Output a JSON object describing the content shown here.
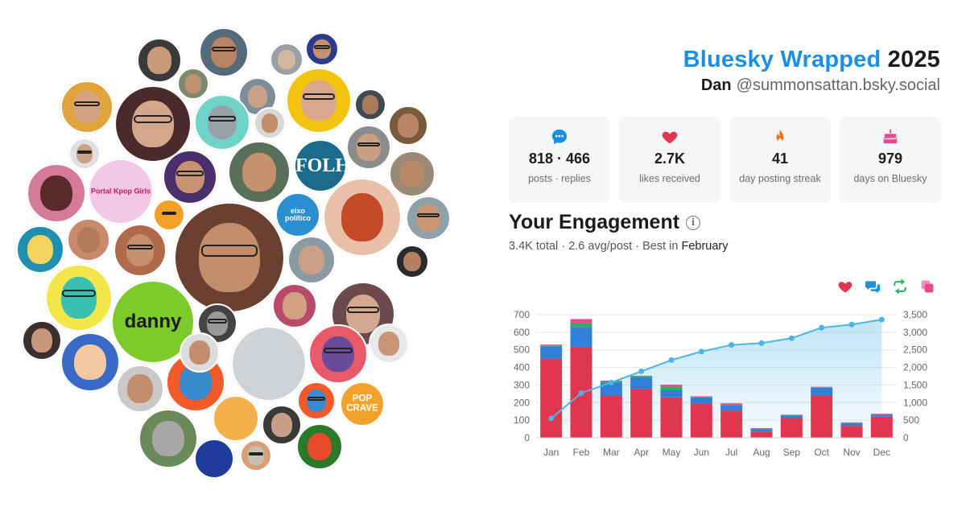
{
  "header": {
    "brand": "Bluesky Wrapped",
    "year": "2025",
    "name": "Dan",
    "handle": "@summonsattan.bsky.social"
  },
  "stats": [
    {
      "icon": "chat-bubble-icon",
      "value": "818 · 466",
      "label": "posts · replies",
      "color": "#1a8fe3"
    },
    {
      "icon": "heart-icon",
      "value": "2.7K",
      "label": "likes received",
      "color": "#e0364f"
    },
    {
      "icon": "flame-icon",
      "value": "41",
      "label": "day posting streak",
      "color": "#f0701d"
    },
    {
      "icon": "cake-icon",
      "value": "979",
      "label": "days on Bluesky",
      "color": "#e64b8c"
    }
  ],
  "engagement": {
    "title": "Your Engagement",
    "total": "3.4K",
    "total_word": "total",
    "avg": "2.6",
    "avg_word": "avg/post",
    "best_prefix": "Best in",
    "best_month": "February"
  },
  "legend": [
    {
      "icon": "heart-icon",
      "color": "#e0364f"
    },
    {
      "icon": "reply-bubbles-icon",
      "color": "#1a8fe3"
    },
    {
      "icon": "repost-icon",
      "color": "#22b35c"
    },
    {
      "icon": "quote-icon",
      "color": "#e64b8c"
    }
  ],
  "avatars": [
    {
      "name": "avatar-bearded-man-1",
      "bg": "#3a3a3a",
      "face": "#c99a7a"
    },
    {
      "name": "avatar-man-glasses-1",
      "bg": "#556b7a",
      "face": "#b98466"
    },
    {
      "name": "avatar-man-mask",
      "bg": "#9aa0a6",
      "face": "#d4b7a0"
    },
    {
      "name": "avatar-man-glasses-blue",
      "bg": "#2b3a8c",
      "face": "#c4906e"
    },
    {
      "name": "avatar-man-mustache",
      "bg": "#e0a43a",
      "face": "#d3a383"
    },
    {
      "name": "avatar-group-photo",
      "bg": "#7a8a6a",
      "face": "#bf9272"
    },
    {
      "name": "avatar-man-selfie",
      "bg": "#7d8d99",
      "face": "#c9a088"
    },
    {
      "name": "avatar-santa-hat",
      "bg": "#f2c40f",
      "face": "#d9a88a"
    },
    {
      "name": "avatar-man-dark",
      "bg": "#3f4a52",
      "face": "#a87a5e"
    },
    {
      "name": "avatar-man-curly",
      "bg": "#7a5a3a",
      "face": "#b98566"
    },
    {
      "name": "avatar-large-man",
      "bg": "#4a2a2a",
      "face": "#d4a68a"
    },
    {
      "name": "avatar-cat-sunglasses",
      "bg": "#6fd3c7",
      "face": "#9aa0a8"
    },
    {
      "name": "avatar-man-beard-2",
      "bg": "#d8d8d8",
      "face": "#c38d6a"
    },
    {
      "name": "avatar-man-beard-3",
      "bg": "#e0e0e0",
      "face": "#caa086"
    },
    {
      "name": "avatar-red-character",
      "bg": "#d67a9a",
      "face": "#5a2a2a"
    },
    {
      "name": "avatar-portal-kpop",
      "bg": "#f3c7e6",
      "face": "#f3c7e6",
      "text": "Portal Kpop Girls"
    },
    {
      "name": "avatar-pikachu",
      "bg": "#f4a12a",
      "face": "#f4a12a"
    },
    {
      "name": "avatar-man-green",
      "bg": "#58705a",
      "face": "#c5916f"
    },
    {
      "name": "avatar-folha",
      "bg": "#1b6c8c",
      "face": "#1b6c8c",
      "text": "FOLHA"
    },
    {
      "name": "avatar-man-purple",
      "bg": "#4b2f6a",
      "face": "#c99272"
    },
    {
      "name": "avatar-man-glasses-3",
      "bg": "#8c8c8c",
      "face": "#caa084"
    },
    {
      "name": "avatar-man-beard-4",
      "bg": "#9a8a78",
      "face": "#b98868"
    },
    {
      "name": "avatar-eixo-politico",
      "bg": "#2a8fd0",
      "face": "#2a8fd0",
      "text": "eixo político"
    },
    {
      "name": "avatar-anime-redhead",
      "bg": "#e8c0a8",
      "face": "#c44a2a"
    },
    {
      "name": "avatar-main-man",
      "bg": "#8fa1a9",
      "face": "#c99774"
    },
    {
      "name": "avatar-man-glasses-4",
      "bg": "#6a4030",
      "face": "#c38c6a"
    },
    {
      "name": "avatar-lightbulb",
      "bg": "#1f8fb0",
      "face": "#f4d35e"
    },
    {
      "name": "avatar-man-beard-5",
      "bg": "#c88a6a",
      "face": "#b27b5c"
    },
    {
      "name": "avatar-man-smile",
      "bg": "#b06a4a",
      "face": "#c69070"
    },
    {
      "name": "avatar-man-child",
      "bg": "#8a9aa2",
      "face": "#caa088"
    },
    {
      "name": "avatar-man-dark-2",
      "bg": "#2a2a2a",
      "face": "#b47f62"
    },
    {
      "name": "avatar-colorful-art",
      "bg": "#f2e64a",
      "face": "#3ac0b0"
    },
    {
      "name": "avatar-danny",
      "bg": "#7ccb2a",
      "face": "#7ccb2a",
      "text": "danny"
    },
    {
      "name": "avatar-man-pride",
      "bg": "#b84a6a",
      "face": "#d3a182"
    },
    {
      "name": "avatar-woman-1",
      "bg": "#6a4a4a",
      "face": "#d4a890"
    },
    {
      "name": "avatar-woman-curly",
      "bg": "#3a2e2e",
      "face": "#c89678"
    },
    {
      "name": "avatar-cartoon-girl",
      "bg": "#3a6ac8",
      "face": "#f2c9a0"
    },
    {
      "name": "avatar-man-bw",
      "bg": "#444444",
      "face": "#9a9a9a"
    },
    {
      "name": "avatar-blue-cartoon",
      "bg": "#f25a2a",
      "face": "#3a8ad0"
    },
    {
      "name": "avatar-watch",
      "bg": "#cfd3d6",
      "face": "#cfd3d6"
    },
    {
      "name": "avatar-gengar",
      "bg": "#e85a6a",
      "face": "#6a4a9a"
    },
    {
      "name": "avatar-man-beard-6",
      "bg": "#e8e8e8",
      "face": "#c79474"
    },
    {
      "name": "avatar-man-beard-7",
      "bg": "#c9c9c9",
      "face": "#c38e70"
    },
    {
      "name": "avatar-pop-crave",
      "bg": "#f2a22a",
      "face": "#f2a22a",
      "text": "POP CRAVE"
    },
    {
      "name": "avatar-gumball",
      "bg": "#f4b04a",
      "face": "#f4b04a"
    },
    {
      "name": "avatar-man-tv",
      "bg": "#3a3a3a",
      "face": "#c8a088"
    },
    {
      "name": "avatar-blue-cartoon-2",
      "bg": "#f25a2a",
      "face": "#3a8ad0"
    },
    {
      "name": "avatar-man-walking",
      "bg": "#6a8a5a",
      "face": "#a8a8a8"
    },
    {
      "name": "avatar-camarote",
      "bg": "#1e3c9a",
      "face": "#1e3c9a"
    },
    {
      "name": "avatar-rock",
      "bg": "#d8a07a",
      "face": "#c8c0b0"
    },
    {
      "name": "avatar-colorful-mask",
      "bg": "#2a7a2a",
      "face": "#e84a2a"
    },
    {
      "name": "avatar-man-beard-8",
      "bg": "#dcdcdc",
      "face": "#c38e70"
    }
  ],
  "chart_data": {
    "type": "bar",
    "categories": [
      "Jan",
      "Feb",
      "Mar",
      "Apr",
      "May",
      "Jun",
      "Jul",
      "Aug",
      "Sep",
      "Oct",
      "Nov",
      "Dec"
    ],
    "series": [
      {
        "name": "likes",
        "color": "#e0364f",
        "values": [
          450,
          515,
          240,
          278,
          230,
          195,
          155,
          35,
          112,
          240,
          68,
          120
        ]
      },
      {
        "name": "replies",
        "color": "#2f80d8",
        "values": [
          70,
          115,
          75,
          65,
          40,
          35,
          30,
          15,
          15,
          45,
          15,
          12
        ]
      },
      {
        "name": "reposts",
        "color": "#22b35c",
        "values": [
          5,
          20,
          5,
          5,
          20,
          3,
          3,
          2,
          2,
          2,
          2,
          2
        ]
      },
      {
        "name": "quotes",
        "color": "#e64b8c",
        "values": [
          5,
          25,
          5,
          5,
          12,
          3,
          8,
          3,
          3,
          3,
          3,
          3
        ]
      }
    ],
    "cumulative": [
      {
        "name": "cumulative",
        "color": "#4db4e8",
        "values": [
          550,
          1270,
          1570,
          1890,
          2210,
          2450,
          2640,
          2690,
          2830,
          3130,
          3220,
          3360
        ]
      }
    ],
    "ylim": [
      0,
      700
    ],
    "yticks": [
      "0",
      "100",
      "200",
      "300",
      "400",
      "500",
      "600",
      "700"
    ],
    "y2lim": [
      0,
      3500
    ],
    "y2ticks": [
      "0",
      "500",
      "1,000",
      "1,500",
      "2,000",
      "2,500",
      "3,000",
      "3,500"
    ],
    "grid": true
  }
}
